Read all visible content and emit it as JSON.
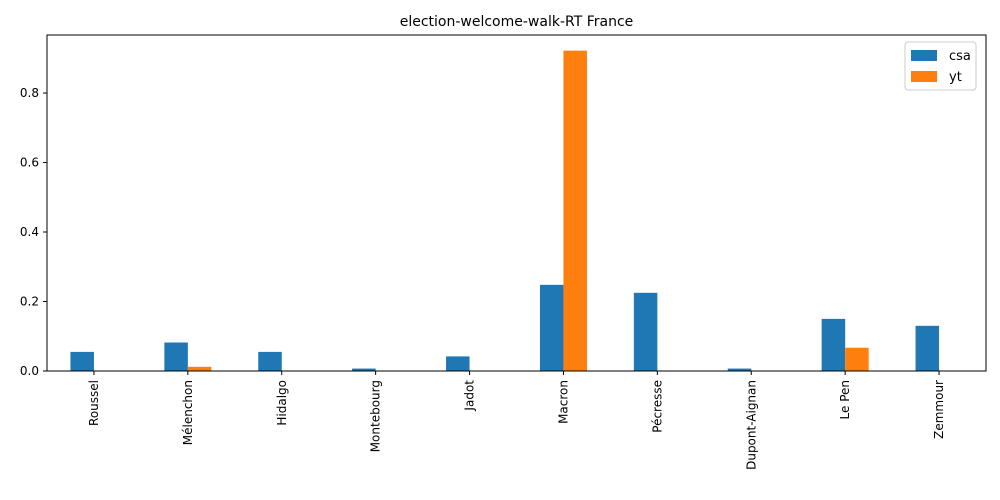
{
  "chart_data": {
    "type": "bar",
    "title": "election-welcome-walk-RT France",
    "xlabel": "",
    "ylabel": "",
    "categories": [
      "Roussel",
      "Mélenchon",
      "Hidalgo",
      "Montebourg",
      "Jadot",
      "Macron",
      "Pécresse",
      "Dupont-Aignan",
      "Le Pen",
      "Zemmour"
    ],
    "series": [
      {
        "name": "csa",
        "color": "#1f77b4",
        "values": [
          0.055,
          0.082,
          0.055,
          0.007,
          0.042,
          0.248,
          0.225,
          0.007,
          0.15,
          0.13
        ]
      },
      {
        "name": "yt",
        "color": "#ff7f0e",
        "values": [
          0.0,
          0.012,
          0.0,
          0.0,
          0.0,
          0.922,
          0.0,
          0.0,
          0.067,
          0.0
        ]
      }
    ],
    "ylim": [
      0,
      0.967
    ],
    "yticks": [
      0.0,
      0.2,
      0.4,
      0.6,
      0.8
    ],
    "ytick_labels": [
      "0.0",
      "0.2",
      "0.4",
      "0.6",
      "0.8"
    ],
    "grid": false,
    "legend_position": "top-right"
  }
}
